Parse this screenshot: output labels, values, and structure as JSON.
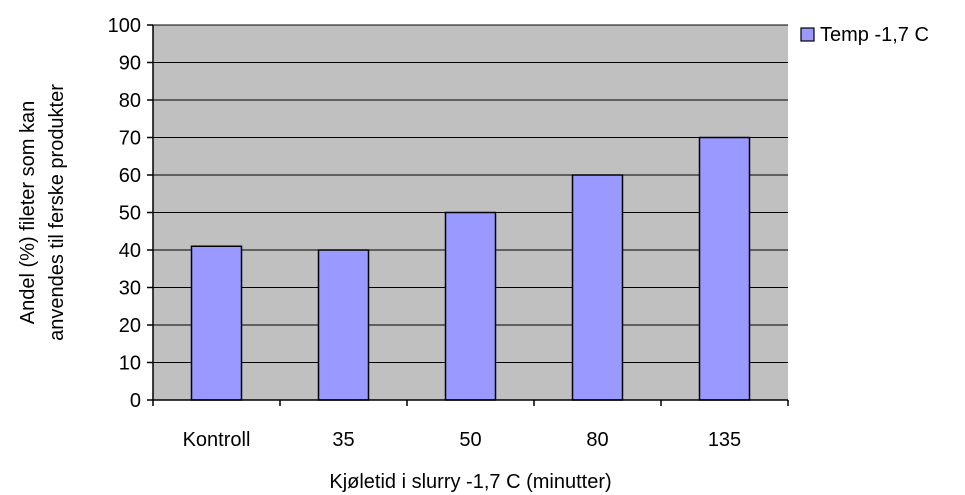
{
  "chart_data": {
    "type": "bar",
    "categories": [
      "Kontroll",
      "35",
      "50",
      "80",
      "135"
    ],
    "series": [
      {
        "name": "Temp -1,7 C",
        "values": [
          41,
          40,
          50,
          60,
          70
        ]
      }
    ],
    "xlabel": "Kjøletid i slurry -1,7 C (minutter)",
    "ylabel": [
      "Andel (%) fileter som kan",
      "anvendes til ferske produkter"
    ],
    "ylim": [
      0,
      100
    ],
    "yticks": [
      0,
      10,
      20,
      30,
      40,
      50,
      60,
      70,
      80,
      90,
      100
    ],
    "grid": true,
    "legend_position": "top-right",
    "colors": {
      "plot_background": "#C0C0C0",
      "bar_fill": "#9999FF",
      "bar_stroke": "#000000",
      "gridline": "#000000"
    }
  }
}
